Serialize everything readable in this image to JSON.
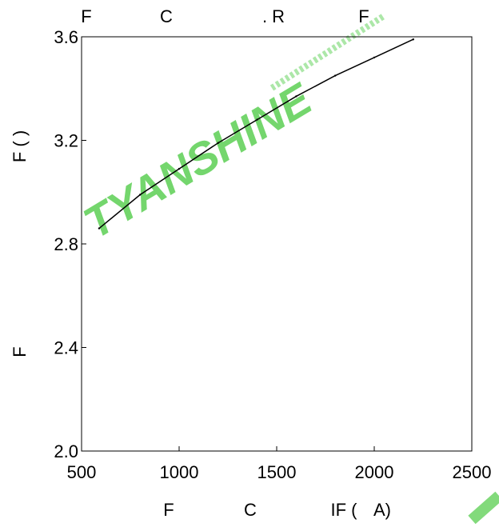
{
  "chart_data": {
    "type": "line",
    "title_fragments": [
      "F",
      "C",
      ". R",
      "F"
    ],
    "ylabel_fragments": [
      "F ( )",
      "F"
    ],
    "xlabel_fragments": [
      "F",
      "C",
      "IF (",
      "A)"
    ],
    "xlim": [
      500,
      2500
    ],
    "ylim": [
      2.0,
      3.6
    ],
    "x_ticks": [
      500,
      1000,
      1500,
      2000,
      2500
    ],
    "x_tick_labels": [
      "500",
      "1000",
      "1500",
      "2000",
      "2500"
    ],
    "y_ticks": [
      2.0,
      2.4,
      2.8,
      3.2,
      3.6
    ],
    "y_tick_labels": [
      "2.0",
      "2.4",
      "2.8",
      "3.2",
      "3.6"
    ],
    "grid": false,
    "series": [
      {
        "color": "#000000",
        "x": [
          590,
          800,
          1000,
          1200,
          1400,
          1600,
          1800,
          2000,
          2200
        ],
        "y": [
          2.86,
          2.99,
          3.09,
          3.19,
          3.28,
          3.37,
          3.45,
          3.52,
          3.59
        ]
      }
    ]
  }
}
